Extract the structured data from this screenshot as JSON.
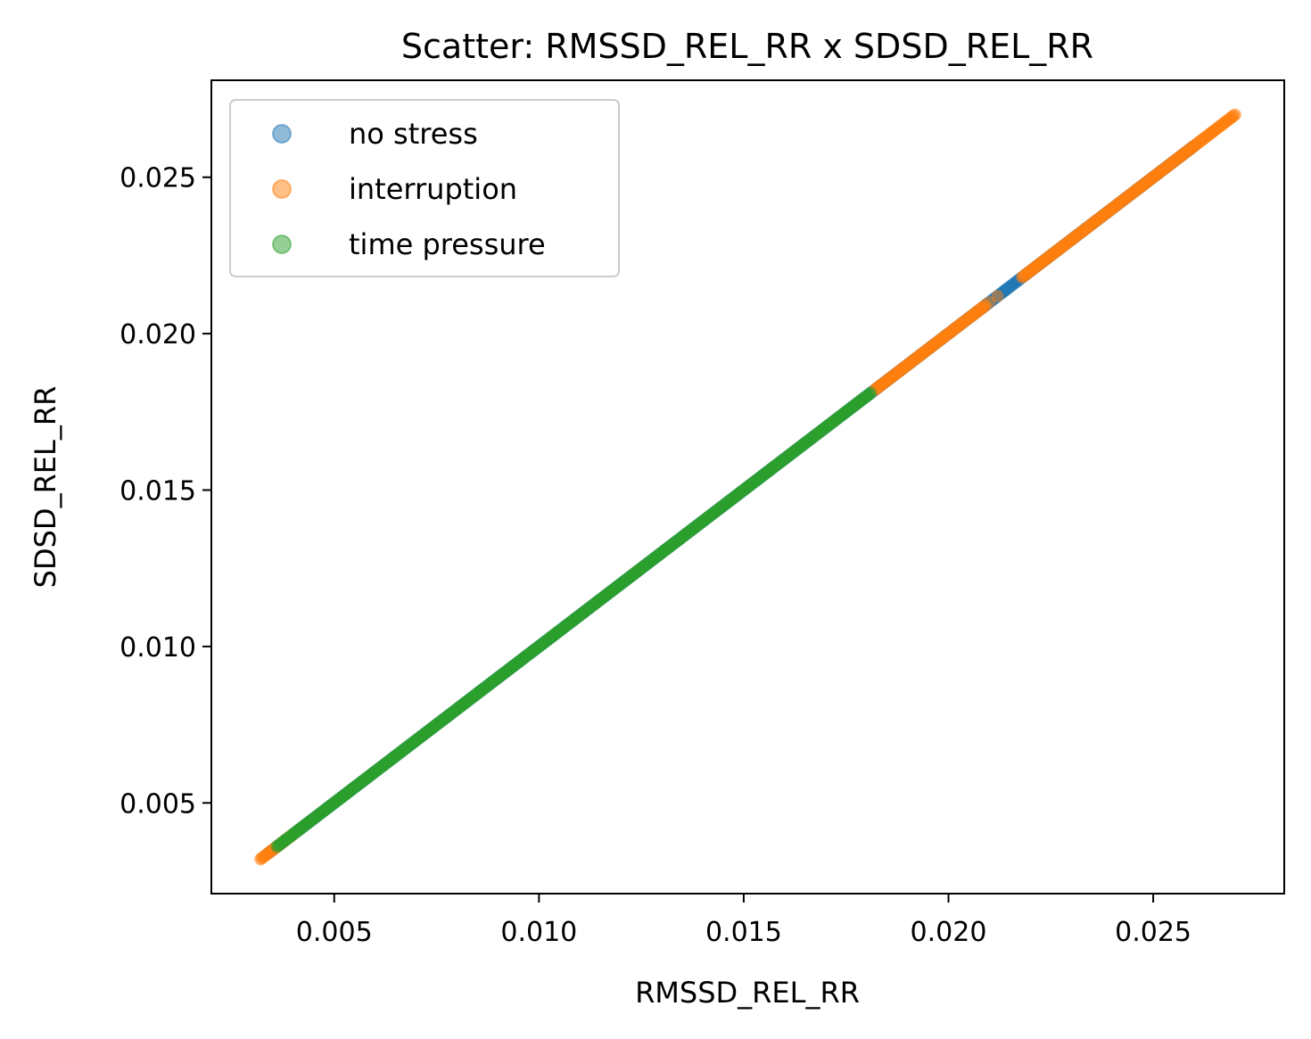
{
  "chart_data": {
    "type": "scatter",
    "title": "Scatter: RMSSD_REL_RR x SDSD_REL_RR",
    "xlabel": "RMSSD_REL_RR",
    "ylabel": "SDSD_REL_RR",
    "xlim": [
      0.002,
      0.0282
    ],
    "ylim": [
      0.0021,
      0.0281
    ],
    "xticks": [
      0.005,
      0.01,
      0.015,
      0.02,
      0.025
    ],
    "xtick_labels": [
      "0.005",
      "0.010",
      "0.015",
      "0.020",
      "0.025"
    ],
    "yticks": [
      0.005,
      0.01,
      0.015,
      0.02,
      0.025
    ],
    "ytick_labels": [
      "0.005",
      "0.010",
      "0.015",
      "0.020",
      "0.025"
    ],
    "grid": false,
    "legend_position": "upper-left",
    "series": [
      {
        "name": "no stress",
        "color": "#1f77b4",
        "alpha": 0.5,
        "segments": [
          [
            0.0034,
            0.026
          ]
        ],
        "extra_points": [
          [
            0.0209,
            0.0209
          ],
          [
            0.0214,
            0.0214
          ],
          [
            0.025,
            0.025
          ]
        ]
      },
      {
        "name": "interruption",
        "color": "#ff7f0e",
        "alpha": 0.5,
        "segments": [
          [
            0.0032,
            0.004
          ],
          [
            0.0182,
            0.0209
          ],
          [
            0.0218,
            0.027
          ]
        ],
        "extra_points": [
          [
            0.0124,
            0.0124
          ],
          [
            0.0168,
            0.0168
          ],
          [
            0.0172,
            0.0172
          ],
          [
            0.0208,
            0.0208
          ],
          [
            0.021,
            0.021
          ],
          [
            0.0212,
            0.0212
          ]
        ]
      },
      {
        "name": "time pressure",
        "color": "#2ca02c",
        "alpha": 0.5,
        "segments": [
          [
            0.0036,
            0.0181
          ]
        ],
        "extra_points": []
      }
    ]
  }
}
